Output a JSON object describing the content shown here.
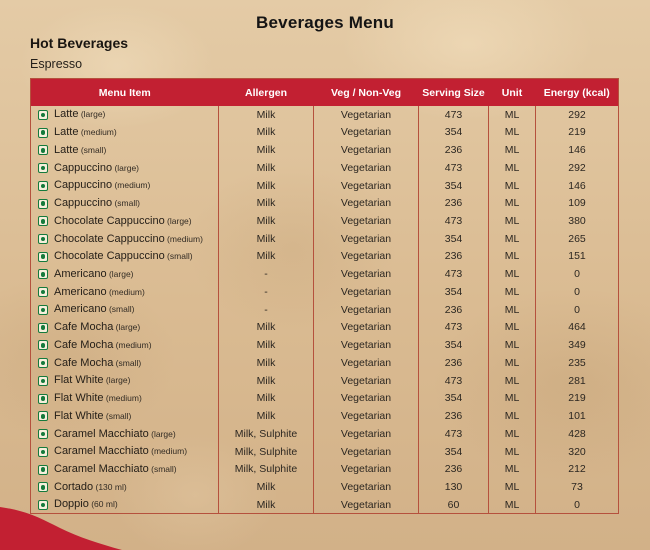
{
  "header": {
    "title": "Beverages Menu",
    "category": "Hot Beverages",
    "subcategory": "Espresso"
  },
  "table": {
    "columns": [
      "Menu Item",
      "Allergen",
      "Veg / Non-Veg",
      "Serving Size",
      "Unit",
      "Energy (kcal)"
    ],
    "rows": [
      {
        "name": "Latte",
        "variant": "(large)",
        "allergen": "Milk",
        "veg_status": "Vegetarian",
        "serving_size": "473",
        "unit": "ML",
        "energy_kcal": "292"
      },
      {
        "name": "Latte",
        "variant": "(medium)",
        "allergen": "Milk",
        "veg_status": "Vegetarian",
        "serving_size": "354",
        "unit": "ML",
        "energy_kcal": "219"
      },
      {
        "name": "Latte",
        "variant": "(small)",
        "allergen": "Milk",
        "veg_status": "Vegetarian",
        "serving_size": "236",
        "unit": "ML",
        "energy_kcal": "146"
      },
      {
        "name": "Cappuccino",
        "variant": "(large)",
        "allergen": "Milk",
        "veg_status": "Vegetarian",
        "serving_size": "473",
        "unit": "ML",
        "energy_kcal": "292"
      },
      {
        "name": "Cappuccino",
        "variant": "(medium)",
        "allergen": "Milk",
        "veg_status": "Vegetarian",
        "serving_size": "354",
        "unit": "ML",
        "energy_kcal": "146"
      },
      {
        "name": "Cappuccino",
        "variant": "(small)",
        "allergen": "Milk",
        "veg_status": "Vegetarian",
        "serving_size": "236",
        "unit": "ML",
        "energy_kcal": "109"
      },
      {
        "name": "Chocolate Cappuccino",
        "variant": "(large)",
        "allergen": "Milk",
        "veg_status": "Vegetarian",
        "serving_size": "473",
        "unit": "ML",
        "energy_kcal": "380"
      },
      {
        "name": "Chocolate Cappuccino",
        "variant": "(medium)",
        "allergen": "Milk",
        "veg_status": "Vegetarian",
        "serving_size": "354",
        "unit": "ML",
        "energy_kcal": "265"
      },
      {
        "name": "Chocolate Cappuccino",
        "variant": "(small)",
        "allergen": "Milk",
        "veg_status": "Vegetarian",
        "serving_size": "236",
        "unit": "ML",
        "energy_kcal": "151"
      },
      {
        "name": "Americano",
        "variant": "(large)",
        "allergen": "-",
        "veg_status": "Vegetarian",
        "serving_size": "473",
        "unit": "ML",
        "energy_kcal": "0"
      },
      {
        "name": "Americano",
        "variant": "(medium)",
        "allergen": "-",
        "veg_status": "Vegetarian",
        "serving_size": "354",
        "unit": "ML",
        "energy_kcal": "0"
      },
      {
        "name": "Americano",
        "variant": "(small)",
        "allergen": "-",
        "veg_status": "Vegetarian",
        "serving_size": "236",
        "unit": "ML",
        "energy_kcal": "0"
      },
      {
        "name": "Cafe Mocha",
        "variant": "(large)",
        "allergen": "Milk",
        "veg_status": "Vegetarian",
        "serving_size": "473",
        "unit": "ML",
        "energy_kcal": "464"
      },
      {
        "name": "Cafe Mocha",
        "variant": "(medium)",
        "allergen": "Milk",
        "veg_status": "Vegetarian",
        "serving_size": "354",
        "unit": "ML",
        "energy_kcal": "349"
      },
      {
        "name": "Cafe Mocha",
        "variant": "(small)",
        "allergen": "Milk",
        "veg_status": "Vegetarian",
        "serving_size": "236",
        "unit": "ML",
        "energy_kcal": "235"
      },
      {
        "name": "Flat White",
        "variant": "(large)",
        "allergen": "Milk",
        "veg_status": "Vegetarian",
        "serving_size": "473",
        "unit": "ML",
        "energy_kcal": "281"
      },
      {
        "name": "Flat White",
        "variant": "(medium)",
        "allergen": "Milk",
        "veg_status": "Vegetarian",
        "serving_size": "354",
        "unit": "ML",
        "energy_kcal": "219"
      },
      {
        "name": "Flat White",
        "variant": "(small)",
        "allergen": "Milk",
        "veg_status": "Vegetarian",
        "serving_size": "236",
        "unit": "ML",
        "energy_kcal": "101"
      },
      {
        "name": "Caramel Macchiato",
        "variant": "(large)",
        "allergen": "Milk, Sulphite",
        "veg_status": "Vegetarian",
        "serving_size": "473",
        "unit": "ML",
        "energy_kcal": "428"
      },
      {
        "name": "Caramel Macchiato",
        "variant": "(medium)",
        "allergen": "Milk, Sulphite",
        "veg_status": "Vegetarian",
        "serving_size": "354",
        "unit": "ML",
        "energy_kcal": "320"
      },
      {
        "name": "Caramel Macchiato",
        "variant": "(small)",
        "allergen": "Milk, Sulphite",
        "veg_status": "Vegetarian",
        "serving_size": "236",
        "unit": "ML",
        "energy_kcal": "212"
      },
      {
        "name": "Cortado",
        "variant": "(130 ml)",
        "allergen": "Milk",
        "veg_status": "Vegetarian",
        "serving_size": "130",
        "unit": "ML",
        "energy_kcal": "73"
      },
      {
        "name": "Doppio",
        "variant": "(60 ml)",
        "allergen": "Milk",
        "veg_status": "Vegetarian",
        "serving_size": "60",
        "unit": "ML",
        "energy_kcal": "0"
      }
    ]
  },
  "icons": {
    "veg": "green-dot-vegetarian-indicator",
    "corner_decoration": "red-wave-corner-blob"
  },
  "colors": {
    "paper_background": "#d9ba93",
    "header_red": "#c22032",
    "table_border": "#b5513d",
    "veg_green": "#157a3c",
    "text_dark": "#262019",
    "header_text": "#ffffff"
  }
}
